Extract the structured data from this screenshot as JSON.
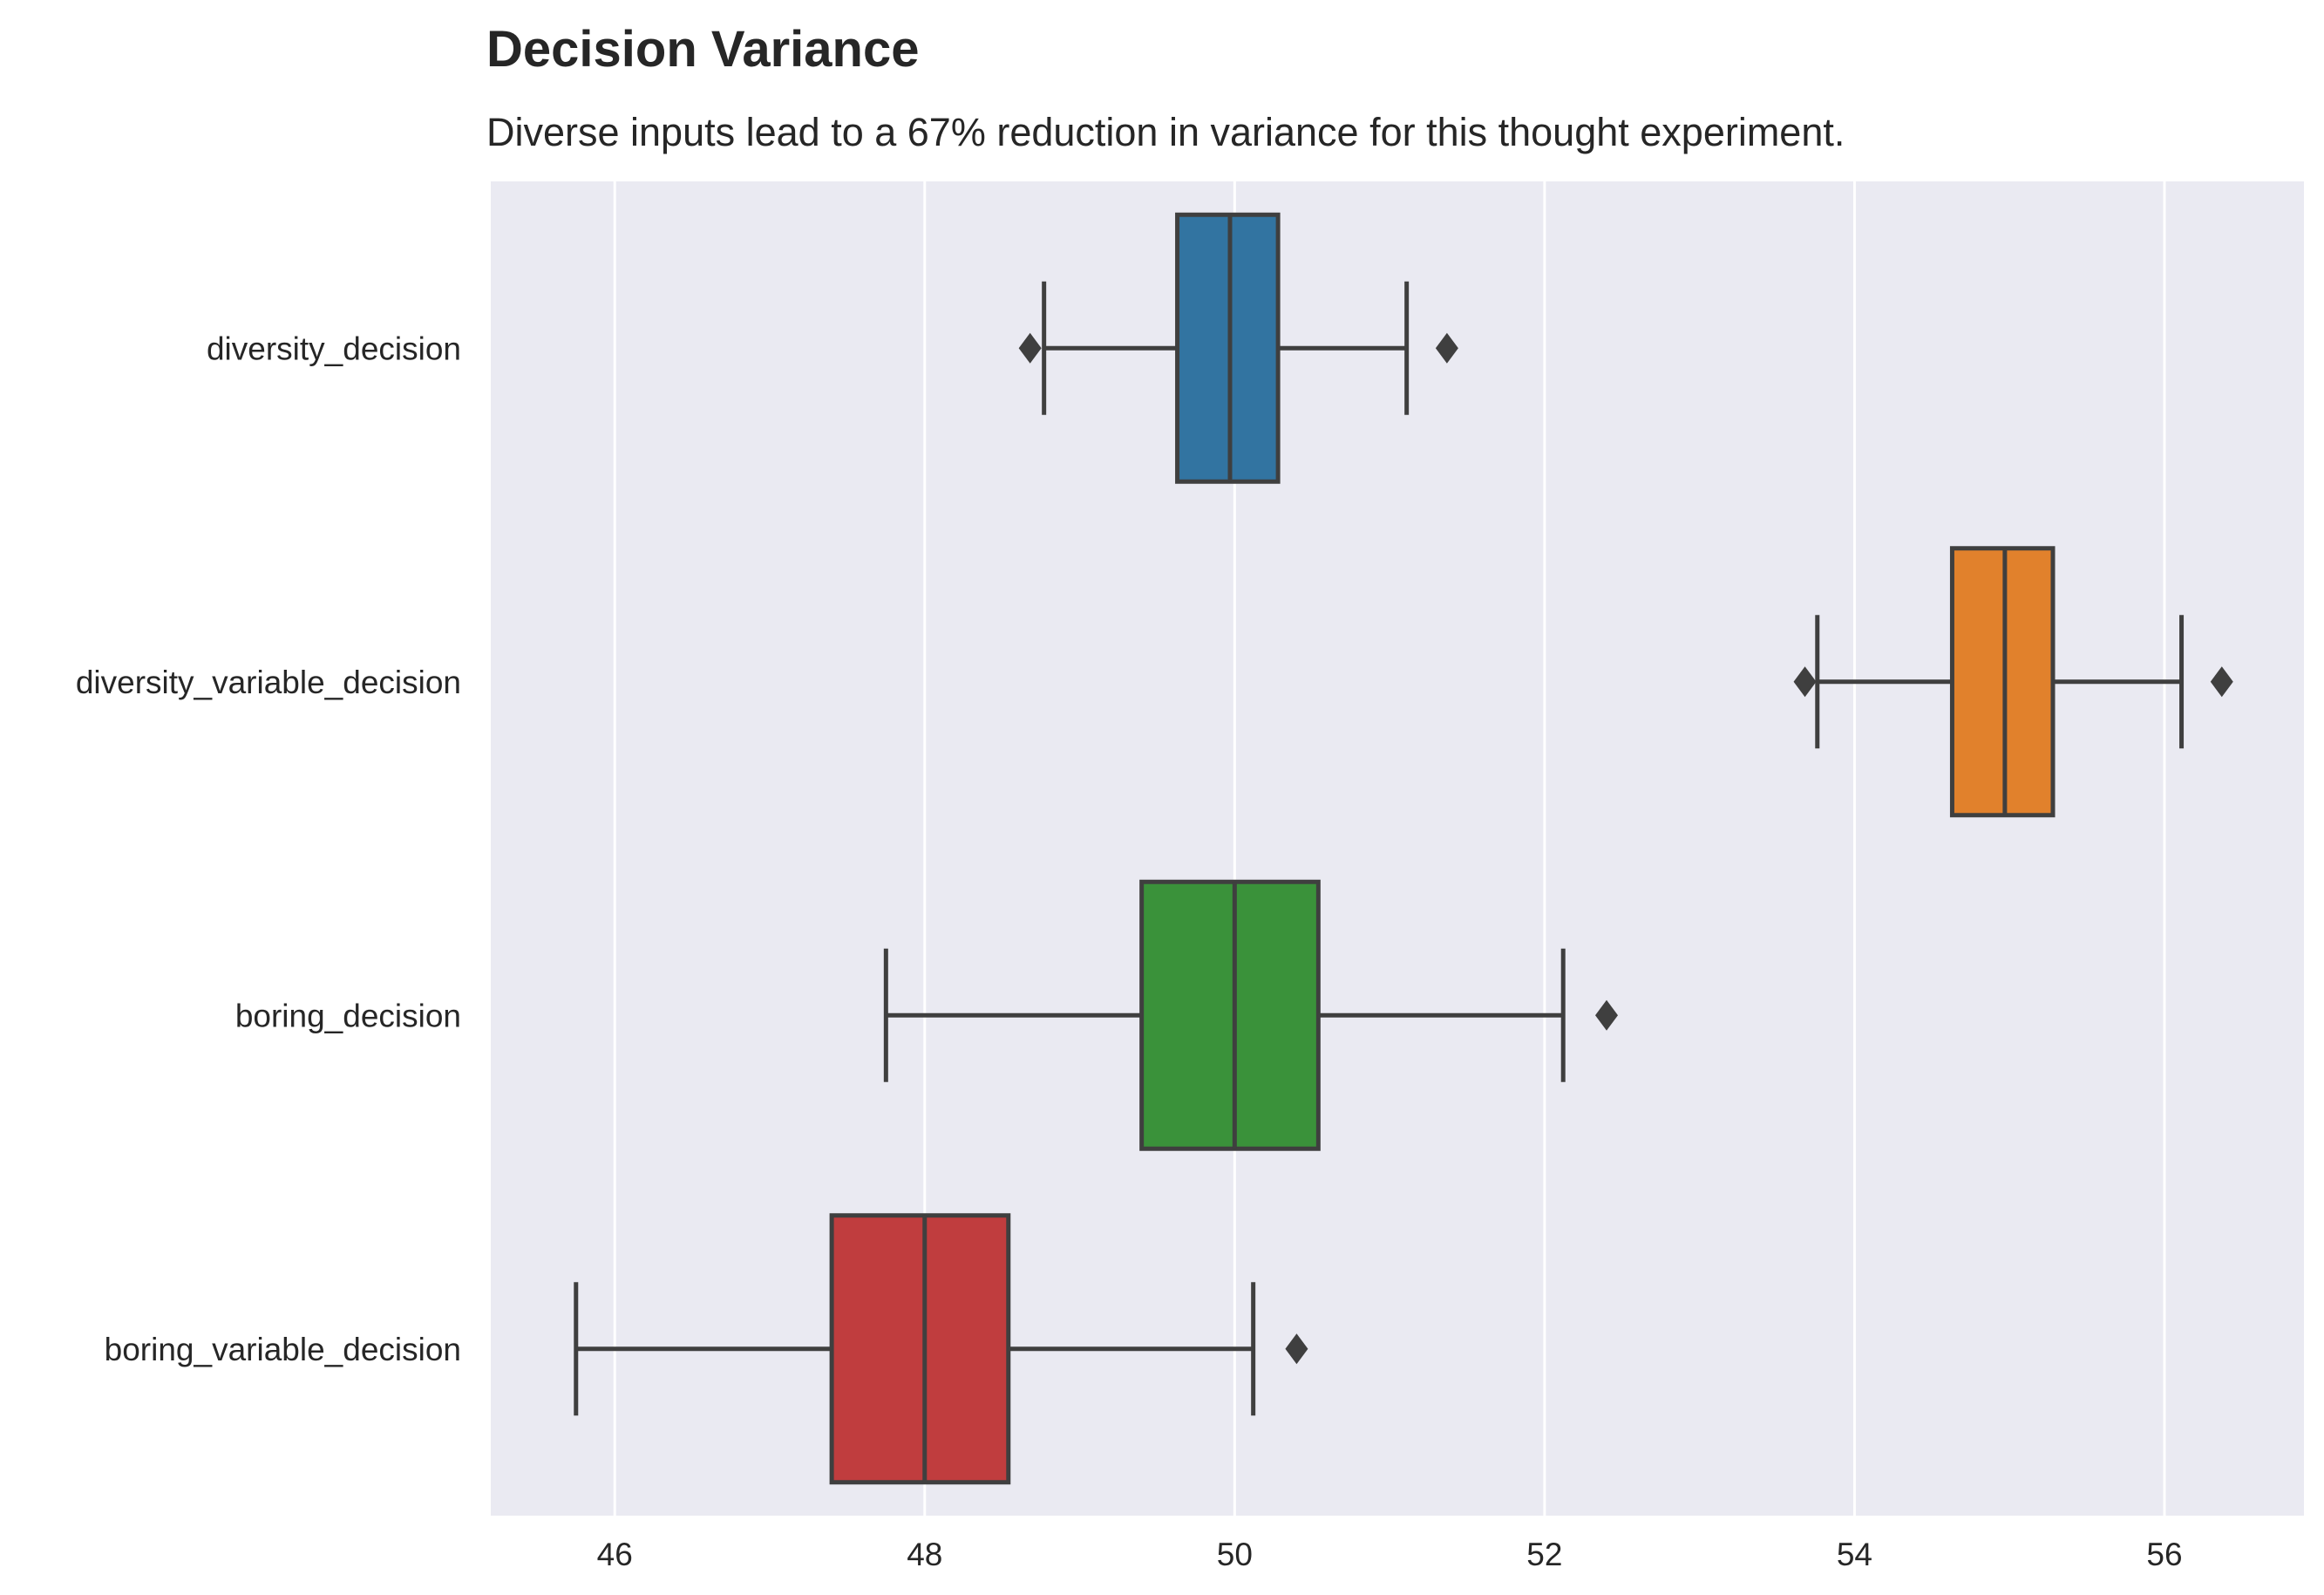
{
  "chart_data": {
    "type": "boxplot",
    "orientation": "horizontal",
    "title": "Decision Variance",
    "subtitle": "Diverse inputs lead to a 67% reduction in variance for this thought experiment.",
    "xlabel": "",
    "ylabel": "",
    "xlim": [
      45.2,
      56.9
    ],
    "xticks": [
      46,
      48,
      50,
      52,
      54,
      56
    ],
    "grid": true,
    "background_color": "#EAEAF2",
    "edge_color": "#3F3F3F",
    "categories": [
      "diversity_decision",
      "diversity_variable_decision",
      "boring_decision",
      "boring_variable_decision"
    ],
    "series": [
      {
        "category": "diversity_decision",
        "color": "#3274A1",
        "whisker_low": 48.77,
        "q1": 49.63,
        "median": 49.97,
        "q3": 50.28,
        "whisker_high": 51.11,
        "outliers": [
          48.68,
          51.37
        ]
      },
      {
        "category": "diversity_variable_decision",
        "color": "#E1812C",
        "whisker_low": 53.76,
        "q1": 54.63,
        "median": 54.97,
        "q3": 55.28,
        "whisker_high": 56.11,
        "outliers": [
          53.68,
          56.37
        ]
      },
      {
        "category": "boring_decision",
        "color": "#3A923A",
        "whisker_low": 47.75,
        "q1": 49.4,
        "median": 50.0,
        "q3": 50.54,
        "whisker_high": 52.12,
        "outliers": [
          52.4
        ]
      },
      {
        "category": "boring_variable_decision",
        "color": "#C03D3E",
        "whisker_low": 45.75,
        "q1": 47.4,
        "median": 48.0,
        "q3": 48.54,
        "whisker_high": 50.12,
        "outliers": [
          50.4
        ]
      }
    ]
  }
}
